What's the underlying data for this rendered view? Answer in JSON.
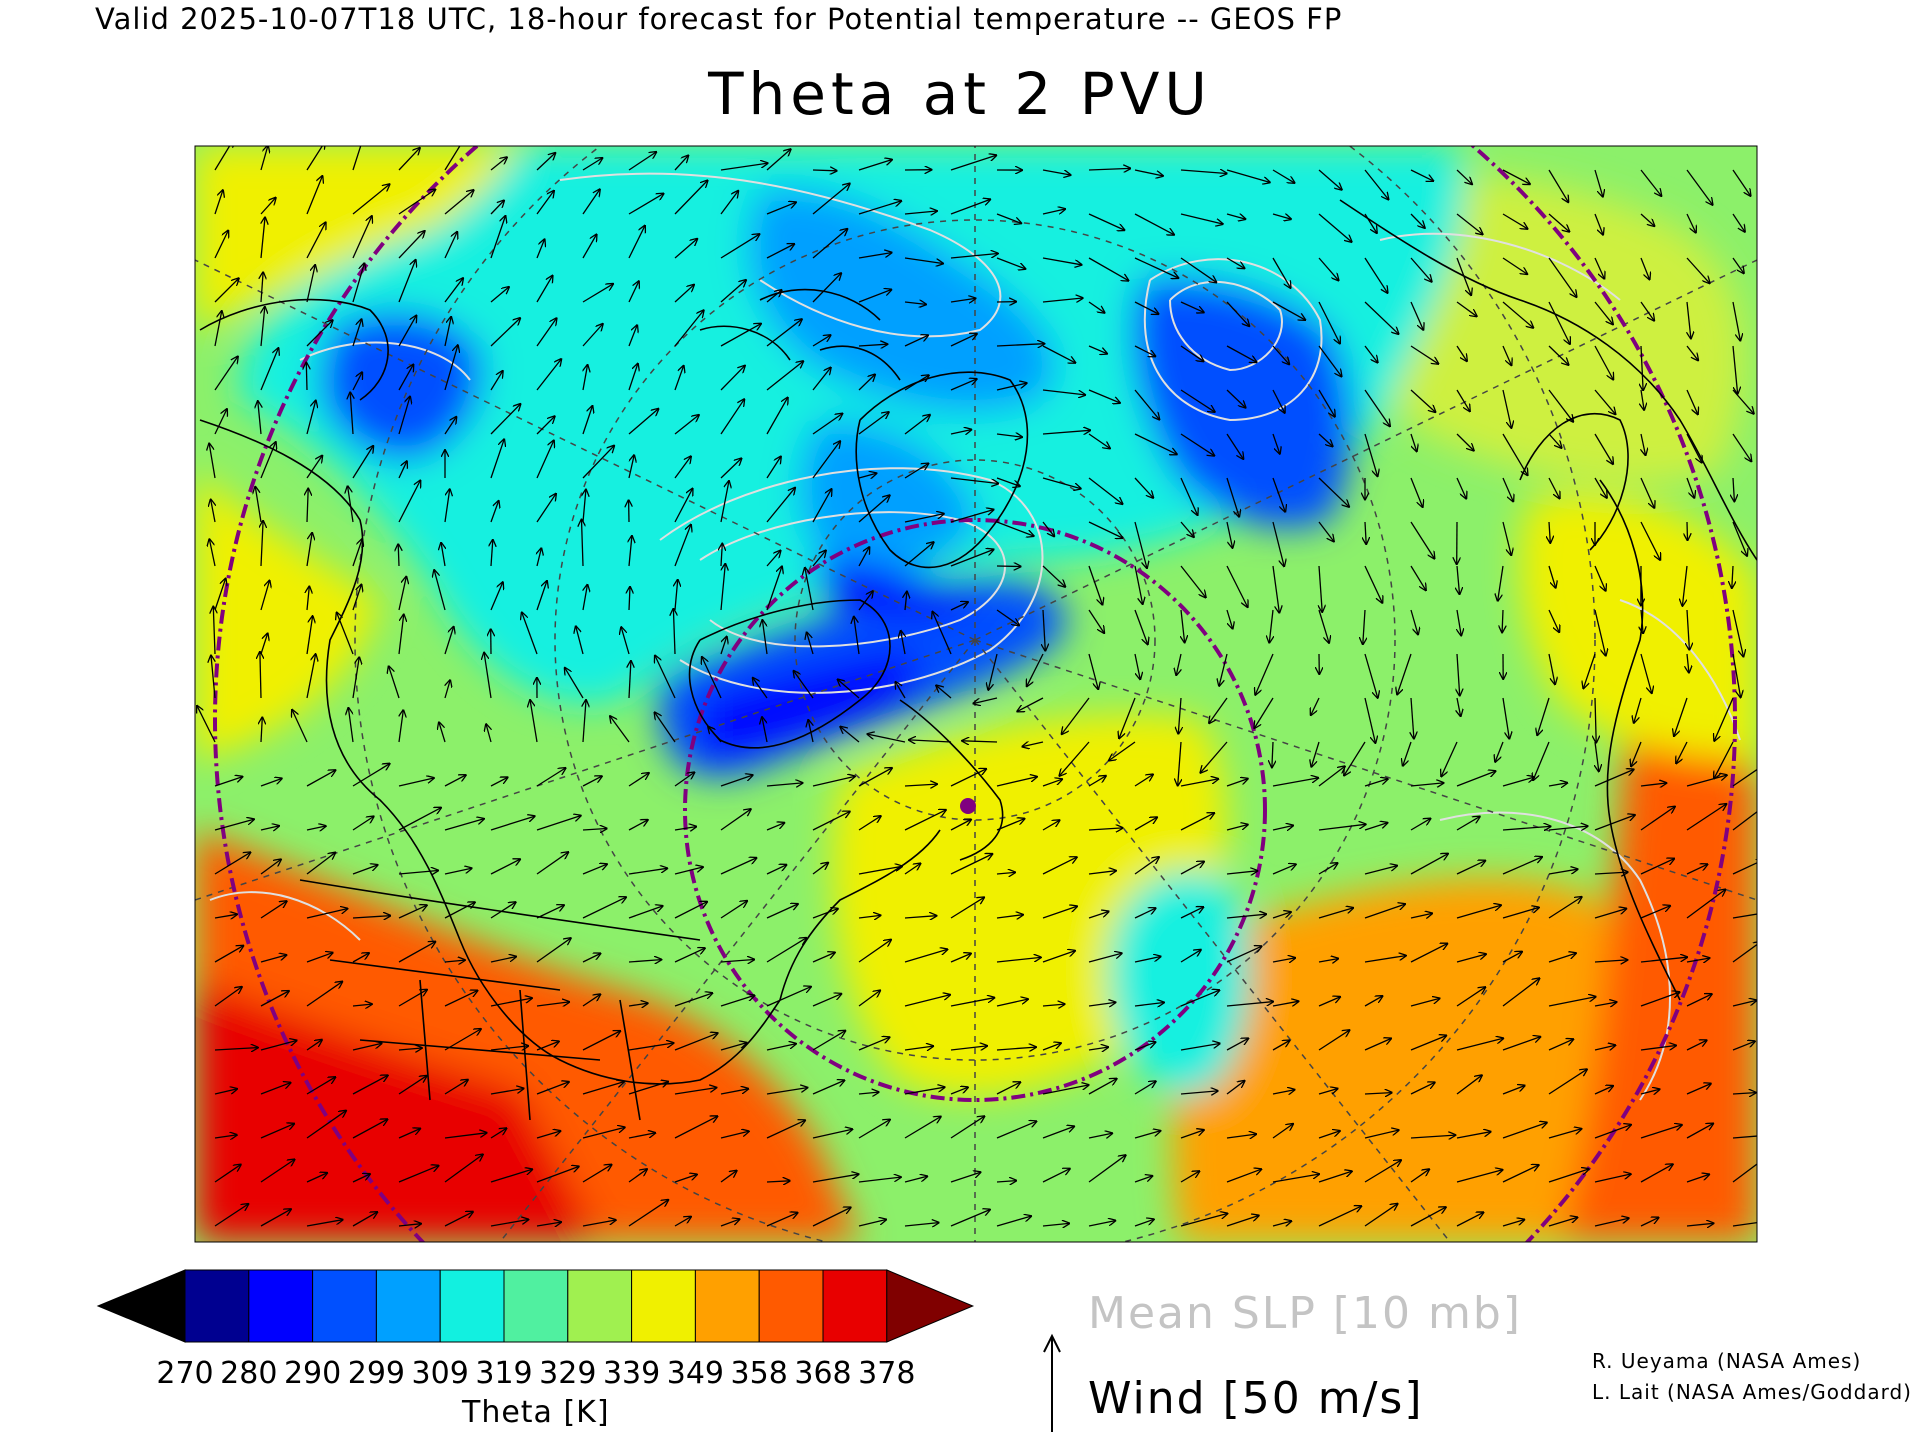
{
  "header": {
    "valid_line": "Valid 2025-10-07T18 UTC, 18-hour forecast for Potential temperature -- GEOS FP",
    "title": "Theta at 2 PVU"
  },
  "colorbar": {
    "title": "Theta [K]",
    "ticks": [
      "270",
      "280",
      "290",
      "299",
      "309",
      "319",
      "329",
      "339",
      "349",
      "358",
      "368",
      "378"
    ],
    "colors": [
      "#000000",
      "#000090",
      "#0000ff",
      "#0050ff",
      "#00a0ff",
      "#12f0e0",
      "#50f0a0",
      "#a0f050",
      "#f0f000",
      "#ffa000",
      "#ff5a00",
      "#e80000",
      "#800000"
    ]
  },
  "legend": {
    "slp_label": "Mean SLP [10 mb]",
    "wind_label": "Wind [50 m/s]"
  },
  "credits": {
    "line1": "R. Ueyama (NASA Ames)",
    "line2": "L. Lait (NASA Ames/Goddard)"
  },
  "map": {
    "marker_color": "#800080",
    "ring_color": "#800080",
    "contour_color": "#e0e0e0",
    "coast_color": "#000000"
  }
}
